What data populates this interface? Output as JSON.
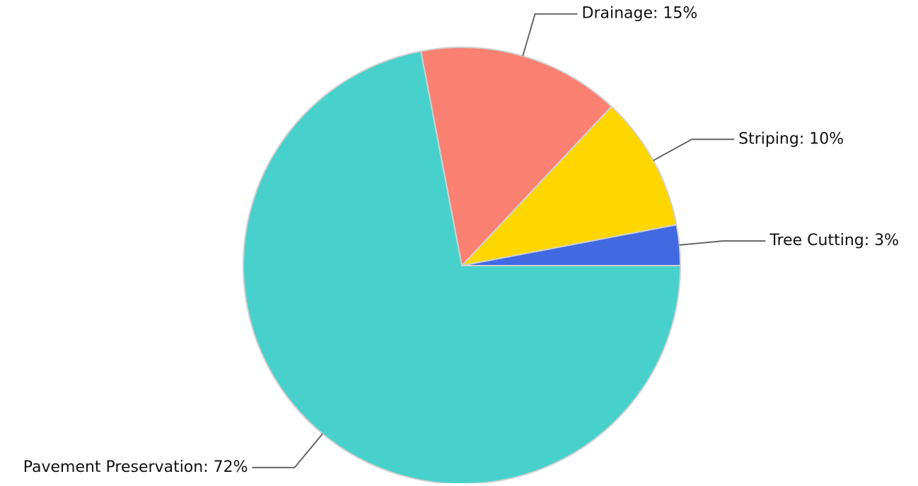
{
  "chart_data": {
    "type": "pie",
    "values": [
      3,
      10,
      15,
      72
    ],
    "value_labels": [
      "Tree Cutting: 3%",
      "Striping: 10%",
      "Drainage: 15%",
      "Pavement Preservation: 72%"
    ],
    "colors": [
      "#4169e1",
      "#ffd700",
      "#fa8072",
      "#48d1cc"
    ],
    "start_angle": 0,
    "direction": "counterclockwise"
  }
}
